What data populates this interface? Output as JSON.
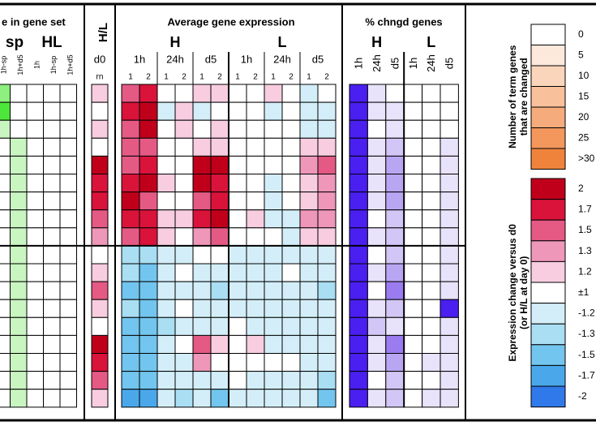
{
  "left_panel": {
    "title": "e in gene set",
    "groups": [
      "sp",
      "HL"
    ],
    "columns": [
      "1h-sp",
      "1h+d5",
      "1h",
      "1h-sp",
      "1h+d5"
    ],
    "colors": [
      "#ffffff",
      "#c9f5c0",
      "#8ef07e",
      "#4de63a",
      "#2ad41a",
      "#14b80a",
      "#009a00"
    ],
    "cells": [
      [
        10,
        0,
        0,
        0,
        0
      ],
      [
        15,
        0,
        0,
        0,
        0
      ],
      [
        5,
        0,
        0,
        0,
        0
      ],
      [
        0,
        5,
        0,
        0,
        0
      ],
      [
        0,
        5,
        0,
        0,
        0
      ],
      [
        0,
        5,
        0,
        0,
        0
      ],
      [
        0,
        5,
        0,
        0,
        0
      ],
      [
        0,
        5,
        0,
        0,
        0
      ],
      [
        0,
        5,
        0,
        0,
        0
      ],
      [
        0,
        5,
        0,
        0,
        0
      ],
      [
        0,
        5,
        0,
        0,
        0
      ],
      [
        0,
        5,
        0,
        0,
        0
      ],
      [
        0,
        5,
        0,
        0,
        0
      ],
      [
        0,
        5,
        0,
        0,
        0
      ],
      [
        0,
        5,
        0,
        0,
        0
      ],
      [
        0,
        5,
        0,
        0,
        0
      ],
      [
        0,
        5,
        0,
        0,
        0
      ],
      [
        0,
        5,
        0,
        0,
        0
      ]
    ]
  },
  "hl_panel": {
    "title": "H/L",
    "day": "d0",
    "sub": "rn",
    "cells": [
      1.2,
      1,
      1.2,
      1,
      2,
      1.7,
      1.7,
      1.5,
      1.3,
      1,
      1.2,
      1.5,
      1.2,
      1,
      2,
      1.7,
      1.5,
      1.2
    ]
  },
  "expression_panel": {
    "title": "Average gene expression",
    "groups": [
      "H",
      "L"
    ],
    "times": [
      "1h",
      "24h",
      "d5",
      "1h",
      "24h",
      "d5"
    ],
    "reps": [
      "1",
      "2",
      "1",
      "2",
      "1",
      "2",
      "1",
      "2",
      "1",
      "2",
      "1",
      "2"
    ],
    "cells": [
      [
        1.5,
        1.7,
        1,
        1,
        1.2,
        1.2,
        1,
        1,
        1.2,
        1,
        -1.2,
        1
      ],
      [
        1.7,
        2,
        -1.2,
        1.2,
        -1.2,
        1,
        1,
        1,
        -1.2,
        1,
        -1.2,
        -1.2
      ],
      [
        1.5,
        2,
        1,
        1.2,
        1,
        1.2,
        1,
        1,
        1,
        1,
        -1.2,
        -1.2
      ],
      [
        1.5,
        1.5,
        1,
        1,
        1.2,
        1.2,
        1,
        1,
        1,
        1,
        1.2,
        1.2
      ],
      [
        1.5,
        1.7,
        1,
        1,
        2,
        2,
        1,
        1,
        1,
        1,
        1.3,
        1.5
      ],
      [
        1.7,
        2,
        1.2,
        1,
        2,
        1.7,
        1,
        1,
        -1.2,
        1,
        1.2,
        1.3
      ],
      [
        2,
        1.5,
        1,
        1,
        1.5,
        1.7,
        1,
        1,
        -1.2,
        1,
        1.2,
        1.3
      ],
      [
        1.7,
        1.7,
        1.2,
        1.2,
        1.7,
        2,
        1,
        1.2,
        -1.2,
        -1.2,
        1.3,
        1.3
      ],
      [
        1.5,
        1.7,
        1.2,
        1,
        1.3,
        1.5,
        1,
        1,
        1,
        -1.2,
        1.2,
        1.2
      ],
      [
        -1.3,
        -1.3,
        -1.2,
        -1.2,
        1,
        1,
        -1.2,
        -1.2,
        -1.2,
        -1.2,
        -1.2,
        -1.2
      ],
      [
        -1.3,
        -1.5,
        -1.2,
        1,
        -1.2,
        -1.2,
        -1.2,
        -1.2,
        -1.2,
        1,
        -1.2,
        -1.2
      ],
      [
        -1.5,
        -1.5,
        -1.2,
        -1.2,
        -1.2,
        -1.3,
        -1.2,
        -1.2,
        -1.2,
        -1.2,
        -1.2,
        -1.3
      ],
      [
        -1.3,
        -1.5,
        -1.2,
        1,
        -1.2,
        -1.2,
        -1.2,
        -1.2,
        -1.2,
        -1.2,
        -1.2,
        -1.2
      ],
      [
        -1.5,
        -1.5,
        -1.3,
        -1.2,
        -1.2,
        -1.2,
        1,
        -1.2,
        -1.2,
        -1.2,
        -1.2,
        -1.2
      ],
      [
        -1.5,
        -1.5,
        -1.2,
        1,
        1.5,
        1.2,
        1,
        1.2,
        -1.2,
        -1.2,
        -1.2,
        -1.2
      ],
      [
        -1.5,
        -1.5,
        -1.2,
        -1.2,
        1.3,
        1,
        1,
        1,
        1,
        1,
        -1.2,
        -1.2
      ],
      [
        -1.5,
        -1.5,
        -1.2,
        -1.2,
        -1.2,
        -1.2,
        1,
        -1.2,
        -1.2,
        -1.2,
        -1.2,
        -1.3
      ],
      [
        -1.7,
        -1.7,
        -1.2,
        -1.3,
        -1.2,
        -1.5,
        -1.2,
        -1.2,
        -1.2,
        -1.2,
        -1.2,
        -1.5
      ]
    ]
  },
  "changed_panel": {
    "title": "% chngd genes",
    "groups": [
      "H",
      "L"
    ],
    "columns": [
      "1h",
      "24h",
      "d5",
      "1h",
      "24h",
      "d5"
    ],
    "colors": [
      "#ffffff",
      "#e8e2fb",
      "#d2c6f6",
      "#b9a6f2",
      "#9b7cf0",
      "#7c55ef",
      "#4a1ff0"
    ],
    "cells": [
      [
        30,
        5,
        0,
        0,
        0,
        0
      ],
      [
        30,
        5,
        5,
        0,
        0,
        0
      ],
      [
        30,
        0,
        5,
        0,
        0,
        0
      ],
      [
        30,
        5,
        10,
        0,
        0,
        5
      ],
      [
        30,
        5,
        15,
        0,
        0,
        5
      ],
      [
        30,
        5,
        15,
        0,
        0,
        5
      ],
      [
        30,
        5,
        15,
        0,
        0,
        5
      ],
      [
        30,
        0,
        10,
        0,
        0,
        5
      ],
      [
        30,
        5,
        10,
        0,
        0,
        5
      ],
      [
        30,
        0,
        10,
        0,
        0,
        5
      ],
      [
        30,
        5,
        15,
        0,
        0,
        5
      ],
      [
        30,
        0,
        20,
        0,
        0,
        5
      ],
      [
        30,
        5,
        10,
        0,
        0,
        30
      ],
      [
        30,
        10,
        5,
        0,
        0,
        5
      ],
      [
        30,
        5,
        20,
        0,
        0,
        5
      ],
      [
        30,
        5,
        15,
        0,
        5,
        5
      ],
      [
        30,
        0,
        10,
        0,
        0,
        5
      ],
      [
        30,
        5,
        10,
        0,
        5,
        5
      ]
    ]
  },
  "count_legend": {
    "title": [
      "Number of term genes",
      "that are changed"
    ],
    "entries": [
      {
        "value": 0,
        "color": "#ffffff"
      },
      {
        "value": 5,
        "color": "#fde9dc"
      },
      {
        "value": 10,
        "color": "#fbd5bb"
      },
      {
        "value": 15,
        "color": "#f8c19c"
      },
      {
        "value": 20,
        "color": "#f5ab7b"
      },
      {
        "value": 25,
        "color": "#f3975c"
      },
      {
        "value": 30,
        "label": ">30",
        "color": "#f0833c"
      }
    ]
  },
  "expression_legend": {
    "title": [
      "Expression change versus d0",
      "(or H/L at day 0)"
    ],
    "entries": [
      {
        "value": 2,
        "color": "#c0001a"
      },
      {
        "value": 1.7,
        "color": "#d9133a"
      },
      {
        "value": 1.5,
        "color": "#e45a85"
      },
      {
        "value": 1.3,
        "color": "#ee97b8"
      },
      {
        "value": 1.2,
        "color": "#f8cde0"
      },
      {
        "value": 1,
        "label": "±1",
        "color": "#ffffff"
      },
      {
        "value": -1.2,
        "color": "#d3eef8"
      },
      {
        "value": -1.3,
        "color": "#a9def3"
      },
      {
        "value": -1.5,
        "color": "#72c5ee"
      },
      {
        "value": -1.7,
        "color": "#4aa8ea"
      },
      {
        "value": -2,
        "color": "#3079ea"
      }
    ]
  }
}
